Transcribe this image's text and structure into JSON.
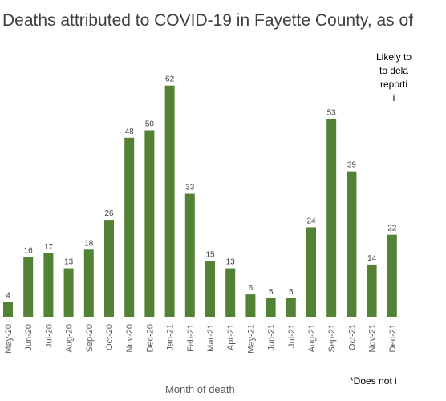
{
  "chart_data": {
    "type": "bar",
    "title": "Deaths attributed to COVID-19 in Fayette County, as of",
    "xlabel": "Month of death",
    "ylabel": "",
    "categories": [
      "May-20",
      "Jun-20",
      "Jul-20",
      "Aug-20",
      "Sep-20",
      "Oct-20",
      "Nov-20",
      "Dec-20",
      "Jan-21",
      "Feb-21",
      "Mar-21",
      "Apr-21",
      "May-21",
      "Jun-21",
      "Jul-21",
      "Aug-21",
      "Sep-21",
      "Oct-21",
      "Nov-21",
      "Dec-21"
    ],
    "values": [
      4,
      16,
      17,
      13,
      18,
      26,
      48,
      50,
      62,
      33,
      15,
      13,
      6,
      5,
      5,
      24,
      53,
      39,
      14,
      22
    ],
    "ylim": [
      0,
      66
    ],
    "bar_color": "#548235",
    "grid": false,
    "legend": "none",
    "annotation_lines": [
      "Likely to",
      "to dela",
      "reporti",
      "i"
    ],
    "footnote": "*Does not i"
  }
}
